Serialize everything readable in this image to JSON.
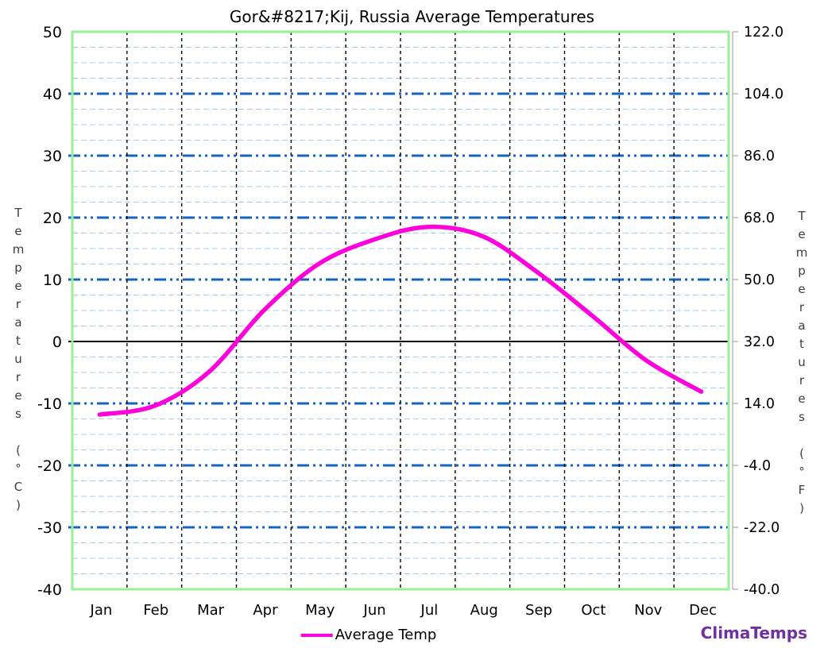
{
  "chart_data": {
    "type": "line",
    "title": "Gor&#8217;Kij, Russia Average Temperatures",
    "categories": [
      "Jan",
      "Feb",
      "Mar",
      "Apr",
      "May",
      "Jun",
      "Jul",
      "Aug",
      "Sep",
      "Oct",
      "Nov",
      "Dec"
    ],
    "series": [
      {
        "name": "Average Temp",
        "values_celsius": [
          -11.8,
          -10.4,
          -4.9,
          5.0,
          12.5,
          16.4,
          18.5,
          17.0,
          11.2,
          4.2,
          -3.1,
          -8.1
        ],
        "color": "#FF00DC",
        "stroke_width": 5.5
      }
    ],
    "y_axis_left": {
      "label": "Temperatures (°C)",
      "min": -40,
      "max": 50,
      "major_step": 10,
      "minor_step": 2.5,
      "tick_labels": [
        "50",
        "40",
        "30",
        "20",
        "10",
        "0",
        "-10",
        "-20",
        "-30",
        "-40"
      ]
    },
    "y_axis_right": {
      "label": "Temperatures (°F)",
      "tick_labels": [
        "122.0",
        "104.0",
        "86.0",
        "68.0",
        "50.0",
        "32.0",
        "14.0",
        "-4.0",
        "-22.0",
        "-40.0"
      ]
    },
    "legend": {
      "position": "bottom-center",
      "entries": [
        {
          "label": "Average Temp",
          "color": "#FF00DC"
        }
      ]
    },
    "grid": {
      "major_color": "#1565C0",
      "minor_color": "#AECBE8",
      "vertical_color": "#000000",
      "zero_line_color": "#000000",
      "plot_border_color": "#9BEE9B",
      "right_axis_color": "#999999"
    }
  },
  "branding": {
    "text": "ClimaTemps",
    "color": "#7030A0"
  }
}
